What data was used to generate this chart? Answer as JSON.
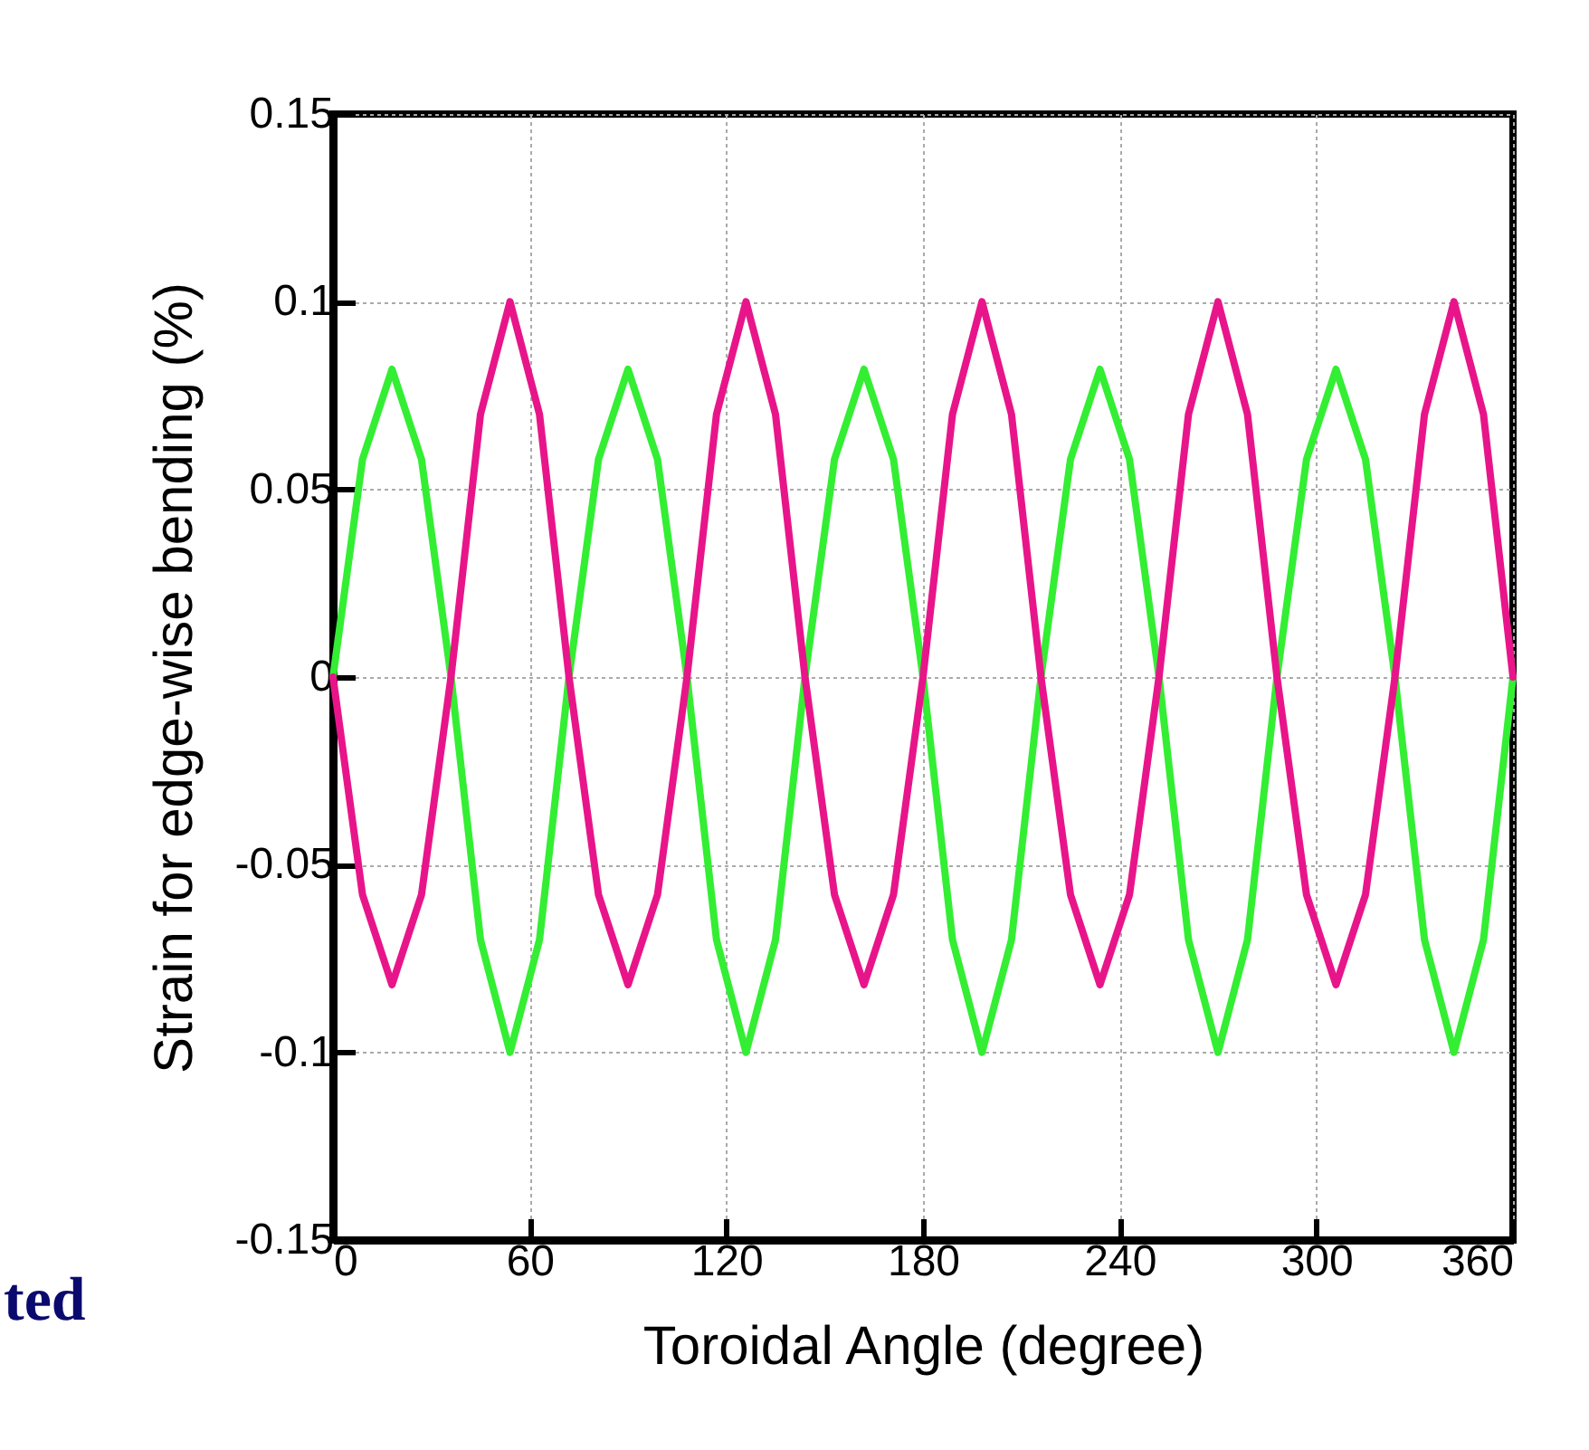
{
  "chart_data": {
    "type": "line",
    "xlabel": "Toroidal Angle (degree)",
    "ylabel": "Strain for edge-wise bending (%)",
    "x": [
      0,
      9,
      18,
      27,
      36,
      45,
      54,
      63,
      72,
      81,
      90,
      99,
      108,
      117,
      126,
      135,
      144,
      153,
      162,
      171,
      180,
      189,
      198,
      207,
      216,
      225,
      234,
      243,
      252,
      261,
      270,
      279,
      288,
      297,
      306,
      315,
      324,
      333,
      342,
      351,
      360
    ],
    "series": [
      {
        "color": "#33ee33",
        "values": [
          0,
          0.058,
          0.082,
          0.058,
          0,
          -0.07,
          -0.1,
          -0.07,
          0,
          0.058,
          0.082,
          0.058,
          0,
          -0.07,
          -0.1,
          -0.07,
          0,
          0.058,
          0.082,
          0.058,
          0,
          -0.07,
          -0.1,
          -0.07,
          0,
          0.058,
          0.082,
          0.058,
          0,
          -0.07,
          -0.1,
          -0.07,
          0,
          0.058,
          0.082,
          0.058,
          0,
          -0.07,
          -0.1,
          -0.07,
          0
        ]
      },
      {
        "color": "#e8158a",
        "values": [
          0,
          -0.058,
          -0.082,
          -0.058,
          0,
          0.07,
          0.1,
          0.07,
          0,
          -0.058,
          -0.082,
          -0.058,
          0,
          0.07,
          0.1,
          0.07,
          0,
          -0.058,
          -0.082,
          -0.058,
          0,
          0.07,
          0.1,
          0.07,
          0,
          -0.058,
          -0.082,
          -0.058,
          0,
          0.07,
          0.1,
          0.07,
          0,
          -0.058,
          -0.082,
          -0.058,
          0,
          0.07,
          0.1,
          0.07,
          0
        ]
      }
    ],
    "xlim": [
      0,
      360
    ],
    "xticks": [
      0,
      60,
      120,
      180,
      240,
      300,
      360
    ],
    "ylim": [
      -0.15,
      0.15
    ],
    "yticks": [
      -0.15,
      -0.1,
      -0.05,
      0,
      0.05,
      0.1,
      0.15
    ],
    "grid": true,
    "line_style": "solid",
    "marker": "none",
    "annotations": [
      "ted"
    ]
  }
}
